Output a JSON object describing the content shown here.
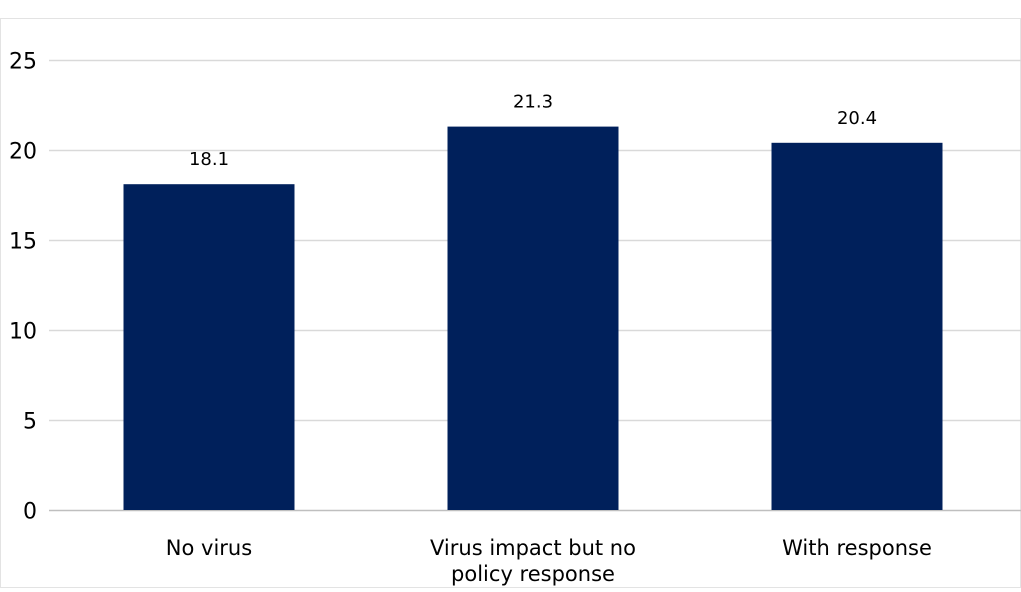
{
  "chart_data": {
    "type": "bar",
    "categories": [
      [
        "No virus"
      ],
      [
        "Virus impact but no",
        "policy response"
      ],
      [
        "With response"
      ]
    ],
    "values": [
      18.1,
      21.3,
      20.4
    ],
    "value_labels": [
      "18.1",
      "21.3",
      "20.4"
    ],
    "ylim": [
      0,
      25
    ],
    "yticks": [
      0,
      5,
      10,
      15,
      20,
      25
    ],
    "grid": true,
    "bar_color": "#00205b",
    "grid_color": "#d9d9d9",
    "axis_color": "#bfbfbf",
    "text_color": "#000000",
    "legend": "none"
  }
}
